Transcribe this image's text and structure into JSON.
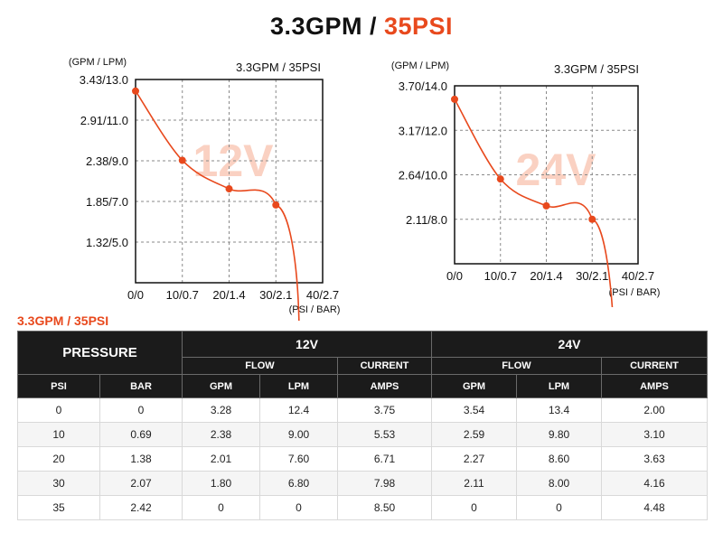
{
  "title": {
    "part1": "3.3GPM / ",
    "part2": "35PSI"
  },
  "colors": {
    "accent": "#e8491d",
    "header_bg": "#1b1b1b",
    "watermark": "#fad1c2"
  },
  "chart_data": [
    {
      "type": "line",
      "title": "3.3GPM / 35PSI",
      "watermark": "12V",
      "y_axis_title": "(GPM / LPM)",
      "x_axis_title": "(PSI / BAR)",
      "x_ticks": [
        "0/0",
        "10/0.7",
        "20/1.4",
        "30/2.1",
        "40/2.7"
      ],
      "y_ticks": [
        "3.43/13.0",
        "2.91/11.0",
        "2.38/9.0",
        "1.85/7.0",
        "1.32/5.0"
      ],
      "xlim": [
        0,
        40
      ],
      "ylim": [
        0.79,
        3.43
      ],
      "grid": true,
      "points": [
        {
          "psi": 0,
          "gpm": 3.28
        },
        {
          "psi": 10,
          "gpm": 2.38
        },
        {
          "psi": 20,
          "gpm": 2.01
        },
        {
          "psi": 30,
          "gpm": 1.8
        },
        {
          "psi": 35,
          "gpm": 0
        }
      ]
    },
    {
      "type": "line",
      "title": "3.3GPM / 35PSI",
      "watermark": "24V",
      "y_axis_title": "(GPM / LPM)",
      "x_axis_title": "(PSI / BAR)",
      "x_ticks": [
        "0/0",
        "10/0.7",
        "20/1.4",
        "30/2.1",
        "40/2.7"
      ],
      "y_ticks": [
        "3.70/14.0",
        "3.17/12.0",
        "2.64/10.0",
        "2.11/8.0"
      ],
      "xlim": [
        0,
        40
      ],
      "ylim": [
        1.58,
        3.7
      ],
      "grid": true,
      "points": [
        {
          "psi": 0,
          "gpm": 3.54
        },
        {
          "psi": 10,
          "gpm": 2.59
        },
        {
          "psi": 20,
          "gpm": 2.27
        },
        {
          "psi": 30,
          "gpm": 2.11
        },
        {
          "psi": 35,
          "gpm": 0
        }
      ]
    }
  ],
  "table": {
    "heading": "3.3GPM / 35PSI",
    "pressure_label": "PRESSURE",
    "group_12v": "12V",
    "group_24v": "24V",
    "flow_label": "FLOW",
    "current_label": "CURRENT",
    "col_psi": "PSI",
    "col_bar": "BAR",
    "col_gpm": "GPM",
    "col_lpm": "LPM",
    "col_amps": "AMPS",
    "rows": [
      [
        "0",
        "0",
        "3.28",
        "12.4",
        "3.75",
        "3.54",
        "13.4",
        "2.00"
      ],
      [
        "10",
        "0.69",
        "2.38",
        "9.00",
        "5.53",
        "2.59",
        "9.80",
        "3.10"
      ],
      [
        "20",
        "1.38",
        "2.01",
        "7.60",
        "6.71",
        "2.27",
        "8.60",
        "3.63"
      ],
      [
        "30",
        "2.07",
        "1.80",
        "6.80",
        "7.98",
        "2.11",
        "8.00",
        "4.16"
      ],
      [
        "35",
        "2.42",
        "0",
        "0",
        "8.50",
        "0",
        "0",
        "4.48"
      ]
    ]
  }
}
